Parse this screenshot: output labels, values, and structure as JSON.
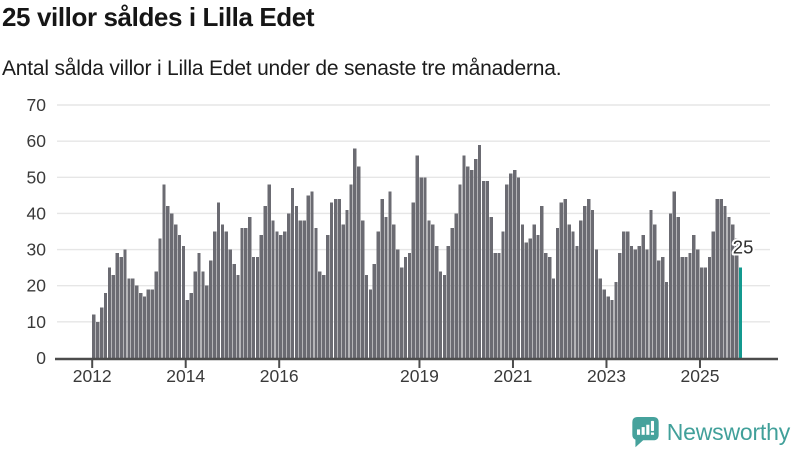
{
  "chart_data": {
    "type": "bar",
    "title": "25 villor såldes i Lilla Edet",
    "subtitle": "Antal sålda villor i Lilla Edet under de senaste tre månaderna.",
    "x_start_year": 2012,
    "values": [
      12,
      10,
      14,
      18,
      25,
      23,
      29,
      28,
      30,
      22,
      22,
      20,
      18,
      17,
      19,
      19,
      24,
      33,
      48,
      42,
      40,
      37,
      34,
      31,
      16,
      18,
      24,
      29,
      24,
      20,
      27,
      35,
      43,
      37,
      35,
      30,
      26,
      23,
      36,
      36,
      39,
      28,
      28,
      34,
      42,
      48,
      38,
      35,
      34,
      35,
      40,
      47,
      42,
      38,
      38,
      45,
      46,
      36,
      24,
      23,
      34,
      43,
      44,
      44,
      37,
      41,
      48,
      58,
      53,
      38,
      23,
      19,
      26,
      35,
      44,
      39,
      46,
      37,
      30,
      25,
      28,
      29,
      43,
      56,
      50,
      50,
      38,
      37,
      31,
      24,
      23,
      31,
      36,
      40,
      48,
      56,
      53,
      52,
      55,
      59,
      49,
      49,
      39,
      29,
      29,
      35,
      48,
      51,
      52,
      50,
      37,
      32,
      33,
      37,
      34,
      42,
      29,
      28,
      22,
      36,
      43,
      44,
      37,
      35,
      31,
      38,
      42,
      44,
      41,
      30,
      22,
      19,
      17,
      16,
      21,
      29,
      35,
      35,
      31,
      30,
      31,
      34,
      30,
      41,
      37,
      27,
      28,
      21,
      40,
      46,
      39,
      28,
      28,
      29,
      34,
      30,
      25,
      25,
      28,
      35,
      44,
      44,
      42,
      39,
      37,
      33,
      25
    ],
    "ylim": [
      0,
      70
    ],
    "yticks": [
      0,
      10,
      20,
      30,
      40,
      50,
      60,
      70
    ],
    "x_tick_labels": [
      "2012",
      "2014",
      "2016",
      "2019",
      "2021",
      "2023",
      "2025"
    ],
    "x_tick_month_index": [
      0,
      24,
      48,
      84,
      108,
      132,
      156
    ],
    "grid": "horizontal",
    "legend": "none",
    "bar_color": "#6b6b72",
    "highlight": {
      "index": 166,
      "label": "25",
      "color": "#13998f"
    }
  },
  "axis_style": {
    "label_color": "#3a3a3a",
    "gridline_color": "#e6e6e6",
    "axis_color": "#4c4c4c",
    "annotation_color": "#2d2d2d"
  },
  "footer": {
    "brand": "Newsworthy",
    "brand_color": "#41a09a",
    "icon_color": "#46a29c"
  }
}
